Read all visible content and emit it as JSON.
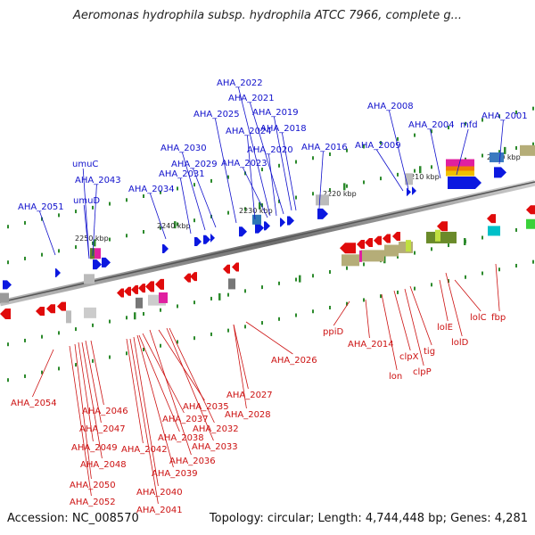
{
  "title": "Aeromonas hydrophila subsp. hydrophila ATCC 7966, complete g...",
  "footer": {
    "accession": "Accession: NC_008570",
    "topology": "Topology: circular; Length: 4,744,448 bp; Genes: 4,281"
  },
  "colors": {
    "forward": "#0b18e0",
    "reverse": "#e00b0b",
    "backbone": "#777777",
    "tick": "#2c8a2c"
  },
  "kbp_marks": [
    "2250 kbp",
    "2240 kbp",
    "2230 kbp",
    "2220 kbp",
    "2210 kbp",
    "2200 kbp"
  ],
  "forward_genes": [
    "AHA_2001",
    "mfd",
    "AHA_2004",
    "AHA_2008",
    "AHA_2009",
    "AHA_2016",
    "AHA_2018",
    "AHA_2019",
    "AHA_2020",
    "AHA_2021",
    "AHA_2022",
    "AHA_2023",
    "AHA_2024",
    "AHA_2025",
    "AHA_2029",
    "AHA_2030",
    "AHA_2031",
    "AHA_2034",
    "AHA_2043",
    "umuC",
    "umuD",
    "AHA_2051"
  ],
  "reverse_genes": [
    "fbp",
    "lolC",
    "lolD",
    "lolE",
    "tig",
    "clpP",
    "clpX",
    "lon",
    "AHA_2014",
    "ppiD",
    "AHA_2026",
    "AHA_2027",
    "AHA_2028",
    "AHA_2032",
    "AHA_2033",
    "AHA_2035",
    "AHA_2036",
    "AHA_2037",
    "AHA_2038",
    "AHA_2039",
    "AHA_2040",
    "AHA_2041",
    "AHA_2042",
    "AHA_2046",
    "AHA_2047",
    "AHA_2048",
    "AHA_2049",
    "AHA_2050",
    "AHA_2052",
    "AHA_2054"
  ]
}
